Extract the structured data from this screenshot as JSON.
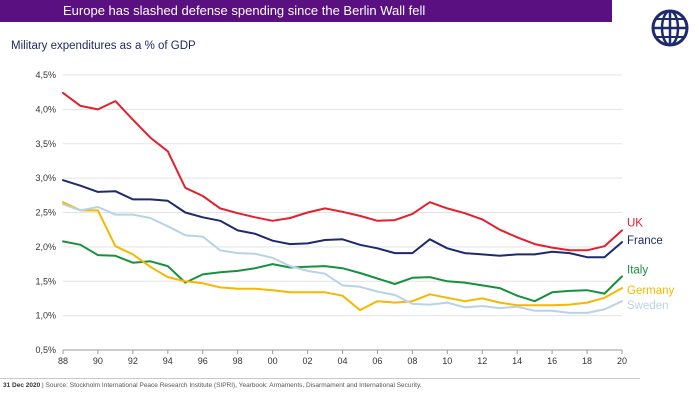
{
  "header": {
    "title": "Europe has slashed defense spending since the Berlin Wall fell"
  },
  "logo": {
    "icon": "globe-icon"
  },
  "footer": {
    "date": "31 Dec 2020",
    "source": "| Source: Stockholm International Peace Research Institute (SIPRI), Yearbook: Armaments, Disarmament and International Security."
  },
  "chart_data": {
    "type": "line",
    "title": "Military expenditures as a % of GDP",
    "xlabel": "",
    "ylabel": "",
    "x": [
      1988,
      1989,
      1990,
      1991,
      1992,
      1993,
      1994,
      1995,
      1996,
      1997,
      1998,
      1999,
      2000,
      2001,
      2002,
      2003,
      2004,
      2005,
      2006,
      2007,
      2008,
      2009,
      2010,
      2011,
      2012,
      2013,
      2014,
      2015,
      2016,
      2017,
      2018,
      2019,
      2020
    ],
    "x_ticks": [
      1988,
      1990,
      1992,
      1994,
      1996,
      1998,
      2000,
      2002,
      2004,
      2006,
      2008,
      2010,
      2012,
      2014,
      2016,
      2018,
      2020
    ],
    "x_tick_labels": [
      "88",
      "90",
      "92",
      "94",
      "96",
      "98",
      "00",
      "02",
      "04",
      "06",
      "08",
      "10",
      "12",
      "14",
      "16",
      "18",
      "20"
    ],
    "y_ticks": [
      0.5,
      1.0,
      1.5,
      2.0,
      2.5,
      3.0,
      3.5,
      4.0,
      4.5
    ],
    "y_tick_labels": [
      "0,5%",
      "1,0%",
      "1,5%",
      "2,0%",
      "2,5%",
      "3,0%",
      "3,5%",
      "4,0%",
      "4,5%"
    ],
    "ylim": [
      0.5,
      4.5
    ],
    "xlim": [
      1988,
      2020
    ],
    "grid": true,
    "legend": "direct labels at right end of lines",
    "series": [
      {
        "name": "UK",
        "color": "#e3202e",
        "values": [
          4.24,
          4.05,
          4.0,
          4.12,
          3.85,
          3.59,
          3.39,
          2.86,
          2.74,
          2.56,
          2.49,
          2.43,
          2.38,
          2.42,
          2.5,
          2.56,
          2.51,
          2.45,
          2.38,
          2.39,
          2.48,
          2.65,
          2.56,
          2.49,
          2.4,
          2.25,
          2.14,
          2.04,
          1.99,
          1.95,
          1.95,
          2.01,
          2.24
        ]
      },
      {
        "name": "France",
        "color": "#1d2a6b",
        "values": [
          2.97,
          2.89,
          2.8,
          2.81,
          2.69,
          2.69,
          2.67,
          2.5,
          2.43,
          2.38,
          2.24,
          2.19,
          2.09,
          2.04,
          2.05,
          2.1,
          2.11,
          2.03,
          1.98,
          1.91,
          1.91,
          2.11,
          1.98,
          1.91,
          1.89,
          1.87,
          1.89,
          1.89,
          1.93,
          1.91,
          1.85,
          1.85,
          2.07
        ]
      },
      {
        "name": "Italy",
        "color": "#17913d",
        "values": [
          2.08,
          2.03,
          1.88,
          1.87,
          1.77,
          1.79,
          1.72,
          1.48,
          1.6,
          1.63,
          1.65,
          1.69,
          1.75,
          1.7,
          1.71,
          1.72,
          1.69,
          1.62,
          1.54,
          1.46,
          1.55,
          1.56,
          1.5,
          1.48,
          1.44,
          1.4,
          1.29,
          1.21,
          1.34,
          1.36,
          1.37,
          1.32,
          1.57
        ]
      },
      {
        "name": "Germany",
        "color": "#f5b800",
        "values": [
          2.65,
          2.53,
          2.53,
          2.01,
          1.89,
          1.71,
          1.56,
          1.5,
          1.47,
          1.41,
          1.39,
          1.39,
          1.37,
          1.34,
          1.34,
          1.34,
          1.29,
          1.08,
          1.21,
          1.19,
          1.21,
          1.31,
          1.26,
          1.21,
          1.25,
          1.19,
          1.15,
          1.15,
          1.15,
          1.16,
          1.19,
          1.26,
          1.4
        ]
      },
      {
        "name": "Sweden",
        "color": "#b8d3e6",
        "values": [
          2.62,
          2.53,
          2.58,
          2.47,
          2.47,
          2.42,
          2.3,
          2.17,
          2.15,
          1.95,
          1.91,
          1.9,
          1.84,
          1.72,
          1.65,
          1.61,
          1.44,
          1.42,
          1.35,
          1.3,
          1.17,
          1.16,
          1.19,
          1.12,
          1.14,
          1.11,
          1.13,
          1.07,
          1.07,
          1.04,
          1.04,
          1.09,
          1.21
        ]
      }
    ]
  }
}
